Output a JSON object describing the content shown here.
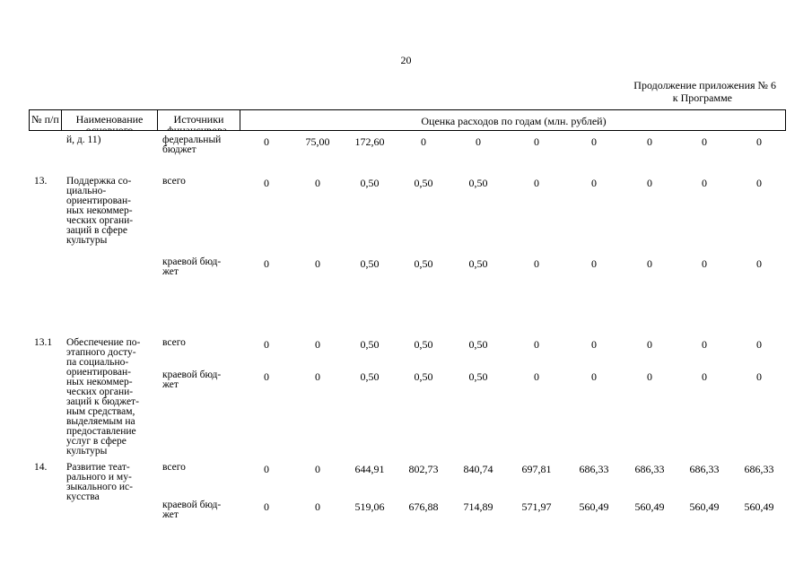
{
  "page_number": "20",
  "annex": {
    "line1": "Продолжение приложения № 6",
    "line2": "к Программе"
  },
  "header": {
    "num": "№ п/п",
    "name": "Наименование основного",
    "source": "Источники финансирова-",
    "estimate": "Оценка расходов по годам (млн. рублей)"
  },
  "rows": [
    {
      "num": "",
      "name_lines": [
        "й, д. 11)"
      ],
      "source_lines": [
        "федеральный",
        "бюджет"
      ],
      "values": [
        "0",
        "75,00",
        "172,60",
        "0",
        "0",
        "0",
        "0",
        "0",
        "0",
        "0"
      ]
    },
    {
      "num": "13.",
      "name_lines": [
        "Поддержка со-",
        "циально-",
        "ориентирован-",
        "ных некоммер-",
        "ческих органи-",
        "заций в сфере",
        "культуры"
      ],
      "source_lines": [
        "всего"
      ],
      "values": [
        "0",
        "0",
        "0,50",
        "0,50",
        "0,50",
        "0",
        "0",
        "0",
        "0",
        "0"
      ]
    },
    {
      "num": "",
      "name_lines": [],
      "source_lines": [
        "краевой бюд-",
        "жет"
      ],
      "values": [
        "0",
        "0",
        "0,50",
        "0,50",
        "0,50",
        "0",
        "0",
        "0",
        "0",
        "0"
      ]
    },
    {
      "num": "13.1",
      "name_lines": [
        "Обеспечение по-",
        "этапного досту-",
        "па социально-",
        "ориентирован-",
        "ных некоммер-",
        "ческих органи-",
        "заций к бюджет-",
        "ным средствам,",
        "выделяемым на",
        "предоставление",
        "услуг в сфере",
        "культуры"
      ],
      "source_lines": [
        "всего"
      ],
      "values": [
        "0",
        "0",
        "0,50",
        "0,50",
        "0,50",
        "0",
        "0",
        "0",
        "0",
        "0"
      ]
    },
    {
      "num": "",
      "name_lines": [],
      "source_lines": [
        "краевой бюд-",
        "жет"
      ],
      "values": [
        "0",
        "0",
        "0,50",
        "0,50",
        "0,50",
        "0",
        "0",
        "0",
        "0",
        "0"
      ]
    },
    {
      "num": "14.",
      "name_lines": [
        "Развитие теат-",
        "рального и му-",
        "зыкального ис-",
        "кусства"
      ],
      "source_lines": [
        "всего"
      ],
      "values": [
        "0",
        "0",
        "644,91",
        "802,73",
        "840,74",
        "697,81",
        "686,33",
        "686,33",
        "686,33",
        "686,33"
      ]
    },
    {
      "num": "",
      "name_lines": [],
      "source_lines": [
        "краевой бюд-",
        "жет"
      ],
      "values": [
        "0",
        "0",
        "519,06",
        "676,88",
        "714,89",
        "571,97",
        "560,49",
        "560,49",
        "560,49",
        "560,49"
      ]
    }
  ]
}
